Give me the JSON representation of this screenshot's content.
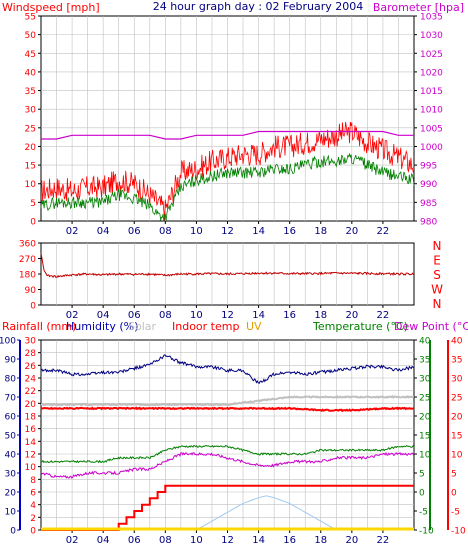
{
  "header": {
    "left_label": "Windspeed [mph]",
    "title": "24 hour graph day : 02 February 2004",
    "right_label": "Barometer [hpa]"
  },
  "colors": {
    "windspeed": "#ff0000",
    "gust": "#ff0000",
    "wind_avg": "#008000",
    "barometer": "#cc00cc",
    "direction": "#c00000",
    "humidity": "#000080",
    "solar": "#c0c0c0",
    "indoor_temp": "#ff0000",
    "uv": "#ffd700",
    "temperature": "#008000",
    "dew_point": "#cc00cc",
    "rain": "#ff0000",
    "uv_curve": "#a0c8f0",
    "rain_axis": "#0000cc",
    "grid": "#c0c0c0"
  },
  "chart_data": [
    {
      "name": "wind_barometer",
      "type": "line",
      "x_ticks": [
        "02",
        "04",
        "06",
        "08",
        "10",
        "12",
        "14",
        "16",
        "18",
        "20",
        "22"
      ],
      "x_range_hours": [
        0,
        24
      ],
      "ylim": [
        0,
        55
      ],
      "yticks": [
        0,
        5,
        10,
        15,
        20,
        25,
        30,
        35,
        40,
        45,
        50,
        55
      ],
      "y2lim": [
        980,
        1035
      ],
      "y2ticks": [
        980,
        985,
        990,
        995,
        1000,
        1005,
        1010,
        1015,
        1020,
        1025,
        1030,
        1035
      ],
      "series": [
        {
          "axis": "left",
          "kind": "gust",
          "x": [
            0,
            1,
            2,
            3,
            4,
            5,
            6,
            7,
            7.5,
            8,
            8.5,
            9,
            10,
            11,
            12,
            13,
            14,
            15,
            16,
            17,
            18,
            19,
            20,
            21,
            22,
            23,
            24
          ],
          "values": [
            8,
            9,
            8,
            9,
            9,
            11,
            10,
            7,
            5,
            3,
            8,
            13,
            14,
            16,
            17,
            18,
            18,
            20,
            20,
            21,
            22,
            23,
            24,
            21,
            19,
            17,
            15
          ]
        },
        {
          "axis": "left",
          "kind": "average",
          "x": [
            0,
            1,
            2,
            3,
            4,
            5,
            6,
            7,
            7.5,
            8,
            8.5,
            9,
            10,
            11,
            12,
            13,
            14,
            15,
            16,
            17,
            18,
            19,
            20,
            21,
            22,
            23,
            24
          ],
          "values": [
            4,
            5,
            5,
            5,
            5,
            7,
            6,
            4,
            2,
            1,
            5,
            9,
            11,
            12,
            13,
            13,
            13,
            14,
            14,
            15,
            16,
            16,
            17,
            15,
            13,
            12,
            11
          ]
        },
        {
          "axis": "right",
          "kind": "barometer",
          "x": [
            0,
            1,
            2,
            3,
            4,
            5,
            6,
            7,
            8,
            8.6,
            9,
            10,
            11,
            12,
            13,
            14,
            15,
            16,
            17,
            18,
            19,
            20,
            21,
            22,
            23,
            24
          ],
          "values": [
            1002,
            1002,
            1003,
            1003,
            1003,
            1003,
            1003,
            1003,
            1002,
            1002,
            1002,
            1003,
            1003,
            1003,
            1003,
            1004,
            1004,
            1004,
            1004,
            1004,
            1004,
            1004,
            1004,
            1004,
            1003,
            1003
          ]
        }
      ]
    },
    {
      "name": "wind_direction",
      "type": "line",
      "x_ticks": [
        "02",
        "04",
        "06",
        "08",
        "10",
        "12",
        "14",
        "16",
        "18",
        "20",
        "22"
      ],
      "ylim": [
        0,
        360
      ],
      "yticks": [
        0,
        90,
        180,
        270,
        360
      ],
      "right_labels": [
        "N",
        "W",
        "S",
        "E",
        "N"
      ],
      "series": [
        {
          "kind": "direction",
          "x": [
            0,
            0.2,
            0.4,
            1,
            2,
            3,
            4,
            5,
            6,
            7,
            8,
            9,
            10,
            11,
            12,
            13,
            14,
            15,
            16,
            17,
            18,
            19,
            20,
            21,
            22,
            23,
            24
          ],
          "values": [
            300,
            200,
            170,
            165,
            175,
            180,
            175,
            180,
            178,
            180,
            172,
            180,
            180,
            182,
            180,
            182,
            185,
            185,
            182,
            182,
            183,
            185,
            184,
            183,
            182,
            180,
            180
          ]
        }
      ]
    },
    {
      "name": "rain_humidity_temperature",
      "type": "line",
      "header_labels": {
        "rainfall": "Rainfall (mm)",
        "humidity": "Humidity (%)",
        "solar": "Solar",
        "indoor": "Indoor temp",
        "uv": "UV",
        "temperature": "Temperature (°C)",
        "dewpoint": "Dew Point (°C)"
      },
      "x_ticks": [
        "02",
        "04",
        "06",
        "08",
        "10",
        "12",
        "14",
        "16",
        "18",
        "20",
        "22"
      ],
      "humidity_ticks": [
        0,
        10,
        20,
        30,
        40,
        50,
        60,
        70,
        80,
        90,
        100
      ],
      "rain_ticks": [
        0,
        2,
        4,
        6,
        8,
        10,
        12,
        14,
        16,
        18,
        20,
        22,
        24,
        26,
        28,
        30
      ],
      "temp_ticks": [
        -10,
        -5,
        0,
        5,
        10,
        15,
        20,
        25,
        30,
        35,
        40
      ],
      "temp_ticks_outer": [
        -10,
        -5,
        0,
        5,
        10,
        15,
        20,
        25,
        30,
        35,
        40
      ],
      "humidity_range": [
        0,
        100
      ],
      "rain_range": [
        0,
        30
      ],
      "temp_range": [
        -10,
        40
      ],
      "series": [
        {
          "kind": "humidity",
          "axis": "humidity",
          "x": [
            0,
            1,
            2,
            3,
            4,
            5,
            6,
            7,
            8,
            9,
            10,
            11,
            12,
            13,
            14,
            15,
            16,
            17,
            18,
            19,
            20,
            21,
            22,
            23,
            24
          ],
          "values": [
            84,
            84,
            82,
            82,
            83,
            83,
            85,
            87,
            92,
            88,
            86,
            86,
            84,
            84,
            77,
            82,
            83,
            82,
            83,
            84,
            85,
            86,
            86,
            84,
            86
          ]
        },
        {
          "kind": "solar",
          "axis": "temp",
          "x": [
            0,
            2,
            4,
            6,
            8,
            10,
            12,
            14,
            16,
            18,
            20,
            22,
            24
          ],
          "values": [
            23,
            23,
            23,
            23,
            23,
            23,
            23,
            24,
            25,
            25,
            25,
            25,
            25
          ]
        },
        {
          "kind": "indoor",
          "axis": "temp",
          "x": [
            0,
            1,
            2,
            4,
            6,
            8,
            10,
            12,
            14,
            16,
            18,
            20,
            22,
            24
          ],
          "values": [
            22,
            22,
            22,
            22,
            22,
            22,
            22,
            22,
            22,
            22,
            21.5,
            21.5,
            22,
            22
          ]
        },
        {
          "kind": "temperature",
          "axis": "temp",
          "x": [
            0,
            1,
            2,
            3,
            4,
            5,
            6,
            7,
            8,
            9,
            10,
            11,
            12,
            13,
            14,
            15,
            16,
            17,
            18,
            19,
            20,
            21,
            22,
            23,
            24
          ],
          "values": [
            8,
            8,
            8,
            8,
            8,
            9,
            9,
            9,
            11,
            12,
            12,
            12,
            12,
            11,
            10,
            10,
            10,
            10,
            11,
            11,
            11,
            11,
            11,
            12,
            12
          ]
        },
        {
          "kind": "dewpoint",
          "axis": "temp",
          "x": [
            0,
            1,
            2,
            3,
            4,
            5,
            6,
            7,
            8,
            9,
            10,
            11,
            12,
            13,
            14,
            15,
            16,
            17,
            18,
            19,
            20,
            21,
            22,
            23,
            24
          ],
          "values": [
            5,
            4,
            4,
            5,
            5,
            5,
            6,
            6,
            8,
            10,
            10,
            10,
            9,
            8,
            7,
            7,
            8,
            8,
            8,
            9,
            9,
            9,
            10,
            10,
            10
          ]
        },
        {
          "kind": "rain",
          "axis": "rain",
          "x": [
            0,
            4.8,
            5,
            5.5,
            6,
            6.5,
            7,
            7.5,
            8,
            24
          ],
          "values": [
            0,
            0,
            1,
            2,
            3,
            4,
            5,
            6,
            7,
            7
          ]
        },
        {
          "kind": "uv",
          "axis": "rain",
          "x": [
            0,
            10,
            11,
            12,
            13,
            14,
            14.5,
            15,
            16,
            17,
            18,
            19,
            24
          ],
          "values": [
            0,
            0,
            1.4,
            2.8,
            4.2,
            5.1,
            5.4,
            5.1,
            4.2,
            2.8,
            1.4,
            0,
            0
          ]
        },
        {
          "kind": "uv_base",
          "axis": "rain",
          "x": [
            0,
            24
          ],
          "values": [
            0,
            0
          ]
        }
      ]
    }
  ]
}
